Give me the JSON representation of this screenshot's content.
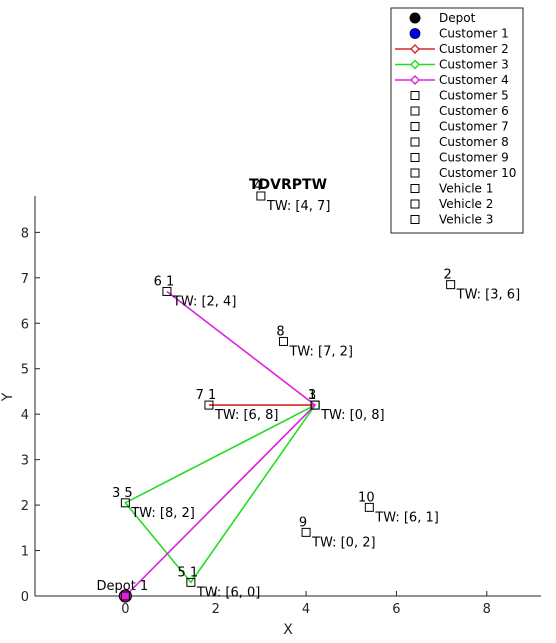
{
  "chart_data": {
    "type": "scatter",
    "title": "TDVRPTW",
    "xlabel": "X",
    "ylabel": "Y",
    "xlim": [
      -2,
      9.2
    ],
    "ylim": [
      0,
      8.8
    ],
    "xticks": [
      0,
      2,
      4,
      6,
      8
    ],
    "yticks": [
      0,
      1,
      2,
      3,
      4,
      5,
      6,
      7,
      8
    ],
    "grid": false,
    "legend_position": "top-right",
    "nodes": [
      {
        "label": "Depot 1",
        "x": 0,
        "y": 0,
        "tw": ""
      },
      {
        "label": "1",
        "x": 4.2,
        "y": 4.2,
        "tw": "TW: [0, 8]"
      },
      {
        "label": "2",
        "x": 7.2,
        "y": 6.85,
        "tw": "TW: [3, 6]"
      },
      {
        "label": "3",
        "x": 4.2,
        "y": 4.2,
        "tw": ""
      },
      {
        "label": "3 5",
        "x": 0,
        "y": 2.05,
        "tw": "TW: [8, 2]"
      },
      {
        "label": "4",
        "x": 3.0,
        "y": 8.8,
        "tw": "TW: [4, 7]"
      },
      {
        "label": "5 1",
        "x": 1.45,
        "y": 0.3,
        "tw": "TW: [6, 0]"
      },
      {
        "label": "6 1",
        "x": 0.92,
        "y": 6.7,
        "tw": "TW: [2, 4]"
      },
      {
        "label": "7 1",
        "x": 1.85,
        "y": 4.2,
        "tw": "TW: [6, 8]"
      },
      {
        "label": "8",
        "x": 3.5,
        "y": 5.6,
        "tw": "TW: [7, 2]"
      },
      {
        "label": "9",
        "x": 4.0,
        "y": 1.4,
        "tw": "TW: [0, 2]"
      },
      {
        "label": "10",
        "x": 5.4,
        "y": 1.95,
        "tw": "TW: [6, 1]"
      }
    ],
    "routes": [
      {
        "name": "Customer 2",
        "color": "#d62728",
        "points": [
          [
            1.85,
            4.2
          ],
          [
            4.2,
            4.2
          ]
        ]
      },
      {
        "name": "Customer 3",
        "color": "#22dd22",
        "points": [
          [
            4.2,
            4.2
          ],
          [
            0,
            2.05
          ],
          [
            1.45,
            0.3
          ],
          [
            4.2,
            4.2
          ]
        ]
      },
      {
        "name": "Customer 4",
        "color": "#dd22dd",
        "points": [
          [
            0.92,
            6.7
          ],
          [
            4.2,
            4.2
          ],
          [
            0,
            0
          ]
        ]
      }
    ],
    "legend": [
      {
        "label": "Depot",
        "marker": "dot-black"
      },
      {
        "label": "Customer 1",
        "marker": "dot-blue"
      },
      {
        "label": "Customer 2",
        "marker": "line-diamond",
        "color": "#d62728"
      },
      {
        "label": "Customer 3",
        "marker": "line-diamond",
        "color": "#22dd22"
      },
      {
        "label": "Customer 4",
        "marker": "line-diamond",
        "color": "#dd22dd"
      },
      {
        "label": "Customer 5",
        "marker": "square"
      },
      {
        "label": "Customer 6",
        "marker": "square"
      },
      {
        "label": "Customer 7",
        "marker": "square"
      },
      {
        "label": "Customer 8",
        "marker": "square"
      },
      {
        "label": "Customer 9",
        "marker": "square"
      },
      {
        "label": "Customer 10",
        "marker": "square"
      },
      {
        "label": "Vehicle 1",
        "marker": "square"
      },
      {
        "label": "Vehicle 2",
        "marker": "square"
      },
      {
        "label": "Vehicle 3",
        "marker": "square"
      }
    ]
  }
}
